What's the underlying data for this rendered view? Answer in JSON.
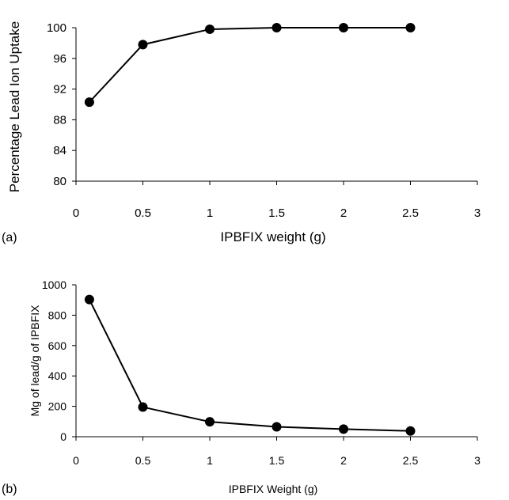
{
  "chart_data": [
    {
      "type": "scatter",
      "panel_label": "(a)",
      "xlabel": "IPBFIX weight (g)",
      "ylabel": "Percentage Lead Ion Uptake",
      "xlim": [
        0,
        3
      ],
      "ylim": [
        80,
        100
      ],
      "xticks": [
        0,
        0.5,
        1,
        1.5,
        2,
        2.5,
        3
      ],
      "xtick_labels": [
        "0",
        "0.5",
        "1",
        "1.5",
        "2",
        "2.5",
        "3"
      ],
      "yticks": [
        80,
        84,
        88,
        92,
        96,
        100
      ],
      "ytick_labels": [
        "80",
        "84",
        "88",
        "92",
        "96",
        "100"
      ],
      "grid": false,
      "series": [
        {
          "x": [
            0.1,
            0.5,
            1,
            1.5,
            2,
            2.5
          ],
          "y": [
            90.3,
            97.8,
            99.8,
            100,
            100,
            100
          ],
          "color": "#000000"
        }
      ]
    },
    {
      "type": "scatter",
      "panel_label": "(b)",
      "xlabel": "IPBFIX Weight (g)",
      "ylabel": "Mg of lead/g of IPBFIX",
      "xlim": [
        0,
        3
      ],
      "ylim": [
        0,
        1000
      ],
      "xticks": [
        0,
        0.5,
        1,
        1.5,
        2,
        2.5,
        3
      ],
      "xtick_labels": [
        "0",
        "0.5",
        "1",
        "1.5",
        "2",
        "2.5",
        "3"
      ],
      "yticks": [
        0,
        200,
        400,
        600,
        800,
        1000
      ],
      "ytick_labels": [
        "0",
        "200",
        "400",
        "600",
        "800",
        "1000"
      ],
      "grid": false,
      "series": [
        {
          "x": [
            0.1,
            0.5,
            1,
            1.5,
            2,
            2.5
          ],
          "y": [
            903,
            195,
            98,
            65,
            50,
            38
          ],
          "color": "#000000"
        }
      ]
    }
  ]
}
